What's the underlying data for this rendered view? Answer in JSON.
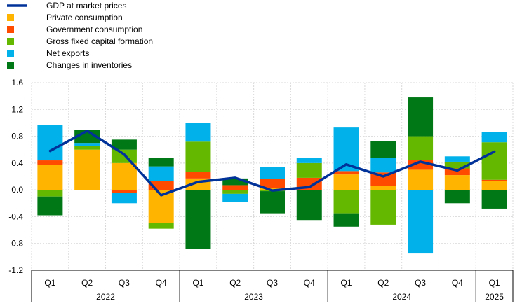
{
  "chart_data": {
    "type": "bar",
    "stacked": true,
    "title": "",
    "xlabel": "",
    "ylabel": "",
    "ylim": [
      -1.2,
      1.6
    ],
    "yticks": [
      "-1.2",
      "-0.8",
      "-0.4",
      "0.0",
      "0.4",
      "0.8",
      "1.2",
      "1.6"
    ],
    "ytick_values": [
      -1.2,
      -0.8,
      -0.4,
      0.0,
      0.4,
      0.8,
      1.2,
      1.6
    ],
    "grid": true,
    "legend_position": "top-left",
    "categories": [
      "Q1",
      "Q2",
      "Q3",
      "Q4",
      "Q1",
      "Q2",
      "Q3",
      "Q4",
      "Q1",
      "Q2",
      "Q3",
      "Q4",
      "Q1"
    ],
    "years": [
      {
        "label": "2022",
        "count": 4
      },
      {
        "label": "2023",
        "count": 4
      },
      {
        "label": "2024",
        "count": 4
      },
      {
        "label": "2025",
        "count": 1
      }
    ],
    "series": [
      {
        "name": "Private consumption",
        "color": "#FFB400",
        "values": [
          0.37,
          0.6,
          0.4,
          -0.5,
          0.17,
          0.0,
          0.03,
          0.0,
          0.23,
          0.06,
          0.3,
          0.22,
          0.13
        ]
      },
      {
        "name": "Government consumption",
        "color": "#FF4B00",
        "values": [
          0.07,
          0.0,
          -0.05,
          0.13,
          0.1,
          0.07,
          0.13,
          0.18,
          0.05,
          0.2,
          0.15,
          0.1,
          0.02
        ]
      },
      {
        "name": "Gross fixed capital formation",
        "color": "#65B800",
        "values": [
          -0.1,
          0.05,
          0.2,
          -0.08,
          0.45,
          -0.06,
          -0.02,
          0.22,
          -0.35,
          -0.52,
          0.35,
          0.1,
          0.56
        ]
      },
      {
        "name": "Net exports",
        "color": "#00B1EA",
        "values": [
          0.53,
          0.05,
          -0.15,
          0.22,
          0.28,
          -0.12,
          0.18,
          0.08,
          0.65,
          0.22,
          -0.95,
          0.08,
          0.15
        ]
      },
      {
        "name": "Changes in inventories",
        "color": "#007816",
        "values": [
          -0.28,
          0.2,
          0.15,
          0.13,
          -0.88,
          0.1,
          -0.33,
          -0.45,
          -0.2,
          0.25,
          0.58,
          -0.2,
          -0.28
        ]
      }
    ],
    "line": {
      "name": "GDP at market prices",
      "color": "#003299",
      "values": [
        0.58,
        0.88,
        0.53,
        -0.08,
        0.12,
        0.18,
        -0.01,
        0.04,
        0.38,
        0.2,
        0.42,
        0.29,
        0.57
      ]
    }
  }
}
